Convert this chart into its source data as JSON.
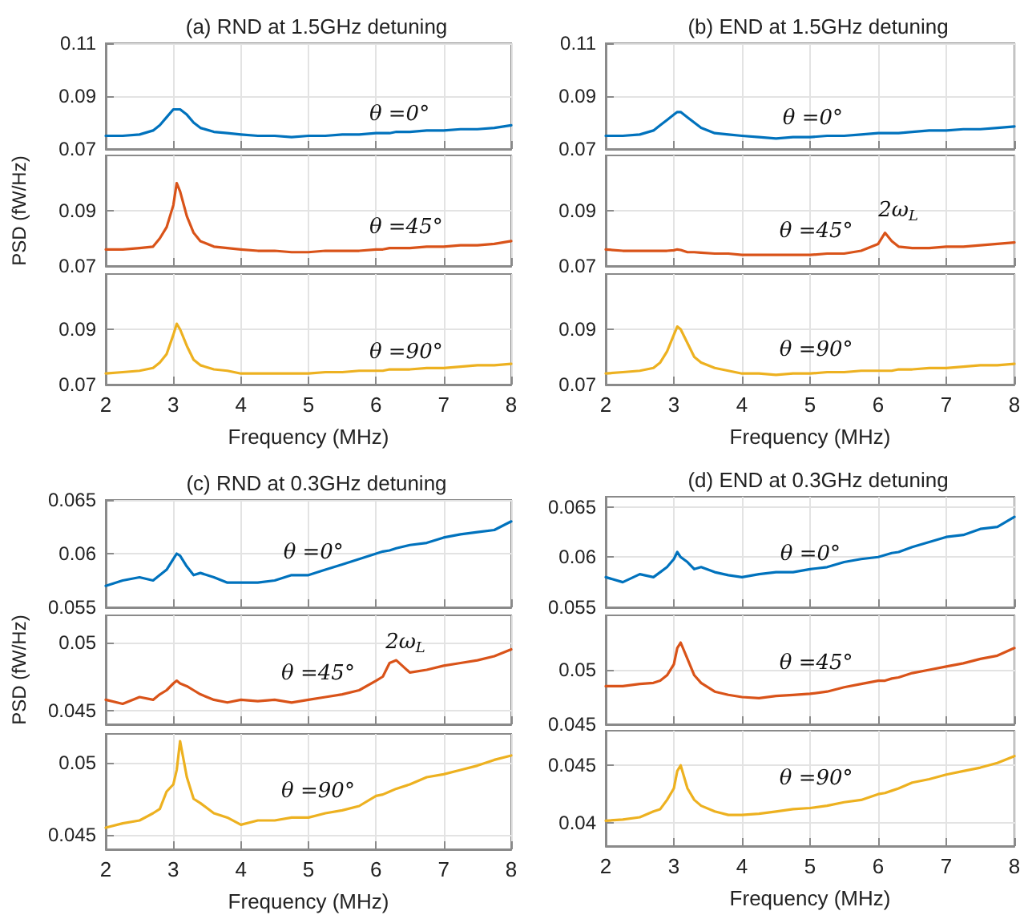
{
  "chart_data": [
    {
      "type": "line",
      "title": "(a) RND at 1.5GHz detuning",
      "x": [
        2,
        2.25,
        2.5,
        2.7,
        2.8,
        2.9,
        3.0,
        3.05,
        3.1,
        3.2,
        3.3,
        3.4,
        3.6,
        3.8,
        4.0,
        4.25,
        4.5,
        4.75,
        5,
        5.25,
        5.5,
        5.75,
        6,
        6.1,
        6.2,
        6.3,
        6.5,
        6.75,
        7,
        7.25,
        7.5,
        7.75,
        8
      ],
      "series": [
        {
          "color": "#0072bd",
          "values": [
            0.075,
            0.075,
            0.0755,
            0.077,
            0.079,
            0.082,
            0.085,
            0.085,
            0.085,
            0.083,
            0.08,
            0.078,
            0.0765,
            0.076,
            0.0755,
            0.075,
            0.075,
            0.0745,
            0.075,
            0.075,
            0.0755,
            0.0755,
            0.076,
            0.076,
            0.076,
            0.0765,
            0.0765,
            0.077,
            0.077,
            0.0775,
            0.0775,
            0.078,
            0.079
          ]
        }
      ],
      "xlim": [
        2,
        8
      ],
      "xticks": [
        2,
        3,
        4,
        5,
        6,
        7,
        8
      ],
      "ylim": [
        0.07,
        0.11
      ],
      "yticks": [
        0.07,
        0.09,
        0.11
      ],
      "grid": true,
      "tick_labels": "y",
      "annotations": [
        "θ =0°"
      ]
    },
    {
      "type": "line",
      "ylabel": "PSD (fW/Hz)",
      "x": [
        2,
        2.25,
        2.5,
        2.7,
        2.8,
        2.9,
        3.0,
        3.05,
        3.1,
        3.2,
        3.3,
        3.4,
        3.6,
        3.8,
        4.0,
        4.25,
        4.5,
        4.75,
        5,
        5.25,
        5.5,
        5.75,
        6,
        6.1,
        6.2,
        6.3,
        6.5,
        6.75,
        7,
        7.25,
        7.5,
        7.75,
        8
      ],
      "series": [
        {
          "color": "#d95319",
          "values": [
            0.076,
            0.076,
            0.0765,
            0.077,
            0.08,
            0.084,
            0.092,
            0.1,
            0.097,
            0.088,
            0.082,
            0.079,
            0.077,
            0.0765,
            0.076,
            0.0755,
            0.0755,
            0.075,
            0.075,
            0.0755,
            0.0755,
            0.0755,
            0.076,
            0.076,
            0.0765,
            0.0765,
            0.0765,
            0.077,
            0.077,
            0.0775,
            0.0775,
            0.078,
            0.079
          ]
        }
      ],
      "xlim": [
        2,
        8
      ],
      "xticks": [
        2,
        3,
        4,
        5,
        6,
        7,
        8
      ],
      "ylim": [
        0.07,
        0.11
      ],
      "yticks": [
        0.07,
        0.09
      ],
      "grid": true,
      "tick_labels": "y",
      "annotations": [
        "θ =45°"
      ]
    },
    {
      "type": "line",
      "xlabel": "Frequency (MHz)",
      "x": [
        2,
        2.25,
        2.5,
        2.7,
        2.8,
        2.9,
        3.0,
        3.05,
        3.1,
        3.2,
        3.3,
        3.4,
        3.6,
        3.8,
        4.0,
        4.25,
        4.5,
        4.75,
        5,
        5.25,
        5.5,
        5.75,
        6,
        6.1,
        6.2,
        6.3,
        6.5,
        6.75,
        7,
        7.25,
        7.5,
        7.75,
        8
      ],
      "series": [
        {
          "color": "#edb120",
          "values": [
            0.074,
            0.0745,
            0.075,
            0.076,
            0.078,
            0.081,
            0.088,
            0.092,
            0.09,
            0.084,
            0.079,
            0.077,
            0.0755,
            0.075,
            0.074,
            0.074,
            0.074,
            0.074,
            0.074,
            0.0745,
            0.0745,
            0.075,
            0.075,
            0.075,
            0.0755,
            0.0755,
            0.0755,
            0.076,
            0.076,
            0.0765,
            0.077,
            0.077,
            0.0775
          ]
        }
      ],
      "xlim": [
        2,
        8
      ],
      "xticks": [
        2,
        3,
        4,
        5,
        6,
        7,
        8
      ],
      "ylim": [
        0.07,
        0.11
      ],
      "yticks": [
        0.07,
        0.09
      ],
      "grid": true,
      "annotations": [
        "θ =90°"
      ]
    },
    {
      "type": "line",
      "title": "(b) END at 1.5GHz detuning",
      "x": [
        2,
        2.25,
        2.5,
        2.7,
        2.8,
        2.9,
        3.0,
        3.05,
        3.1,
        3.2,
        3.3,
        3.4,
        3.6,
        3.8,
        4.0,
        4.25,
        4.5,
        4.75,
        5,
        5.25,
        5.5,
        5.75,
        6,
        6.1,
        6.2,
        6.3,
        6.5,
        6.75,
        7,
        7.25,
        7.5,
        7.75,
        8
      ],
      "series": [
        {
          "color": "#0072bd",
          "values": [
            0.075,
            0.075,
            0.0755,
            0.077,
            0.079,
            0.081,
            0.083,
            0.084,
            0.084,
            0.082,
            0.08,
            0.078,
            0.076,
            0.0755,
            0.075,
            0.0745,
            0.074,
            0.0745,
            0.0745,
            0.075,
            0.075,
            0.0755,
            0.076,
            0.076,
            0.076,
            0.076,
            0.0765,
            0.077,
            0.077,
            0.0775,
            0.0775,
            0.078,
            0.0785
          ]
        }
      ],
      "xlim": [
        2,
        8
      ],
      "xticks": [
        2,
        3,
        4,
        5,
        6,
        7,
        8
      ],
      "ylim": [
        0.07,
        0.11
      ],
      "yticks": [
        0.07,
        0.09,
        0.11
      ],
      "grid": true,
      "tick_labels": "y",
      "annotations": [
        "θ =0°"
      ]
    },
    {
      "type": "line",
      "x": [
        2,
        2.25,
        2.5,
        2.7,
        2.8,
        2.9,
        3.0,
        3.05,
        3.1,
        3.2,
        3.3,
        3.4,
        3.6,
        3.8,
        4.0,
        4.25,
        4.5,
        4.75,
        5,
        5.25,
        5.5,
        5.75,
        6,
        6.1,
        6.2,
        6.3,
        6.5,
        6.75,
        7,
        7.25,
        7.5,
        7.75,
        8
      ],
      "series": [
        {
          "color": "#d95319",
          "values": [
            0.076,
            0.0755,
            0.0755,
            0.0755,
            0.0755,
            0.0755,
            0.0757,
            0.076,
            0.0758,
            0.075,
            0.075,
            0.0748,
            0.0745,
            0.0745,
            0.074,
            0.074,
            0.074,
            0.074,
            0.074,
            0.0745,
            0.0745,
            0.0755,
            0.078,
            0.082,
            0.079,
            0.077,
            0.0765,
            0.0765,
            0.077,
            0.077,
            0.0775,
            0.078,
            0.0785
          ]
        }
      ],
      "xlim": [
        2,
        8
      ],
      "xticks": [
        2,
        3,
        4,
        5,
        6,
        7,
        8
      ],
      "ylim": [
        0.07,
        0.11
      ],
      "yticks": [
        0.07,
        0.09
      ],
      "grid": true,
      "tick_labels": "y",
      "annotations": [
        "θ =45°",
        "2ω$_{L}$"
      ]
    },
    {
      "type": "line",
      "xlabel": "Frequency (MHz)",
      "x": [
        2,
        2.25,
        2.5,
        2.7,
        2.8,
        2.9,
        3.0,
        3.05,
        3.1,
        3.2,
        3.3,
        3.4,
        3.6,
        3.8,
        4.0,
        4.25,
        4.5,
        4.75,
        5,
        5.25,
        5.5,
        5.75,
        6,
        6.1,
        6.2,
        6.3,
        6.5,
        6.75,
        7,
        7.25,
        7.5,
        7.75,
        8
      ],
      "series": [
        {
          "color": "#edb120",
          "values": [
            0.074,
            0.0745,
            0.075,
            0.076,
            0.078,
            0.082,
            0.088,
            0.091,
            0.09,
            0.085,
            0.08,
            0.078,
            0.076,
            0.075,
            0.074,
            0.074,
            0.0735,
            0.074,
            0.074,
            0.0745,
            0.0745,
            0.075,
            0.075,
            0.075,
            0.075,
            0.0755,
            0.0755,
            0.076,
            0.076,
            0.0765,
            0.077,
            0.077,
            0.0775
          ]
        }
      ],
      "xlim": [
        2,
        8
      ],
      "xticks": [
        2,
        3,
        4,
        5,
        6,
        7,
        8
      ],
      "ylim": [
        0.07,
        0.11
      ],
      "yticks": [
        0.07,
        0.09
      ],
      "grid": true,
      "annotations": [
        "θ =90°"
      ]
    },
    {
      "type": "line",
      "title": "(c) RND at 0.3GHz detuning",
      "x": [
        2,
        2.25,
        2.5,
        2.7,
        2.8,
        2.9,
        3.0,
        3.05,
        3.1,
        3.2,
        3.3,
        3.4,
        3.6,
        3.8,
        4.0,
        4.25,
        4.5,
        4.75,
        5,
        5.25,
        5.5,
        5.75,
        6,
        6.1,
        6.2,
        6.3,
        6.5,
        6.75,
        7,
        7.25,
        7.5,
        7.75,
        8
      ],
      "series": [
        {
          "color": "#0072bd",
          "values": [
            0.057,
            0.0575,
            0.0578,
            0.0575,
            0.058,
            0.0585,
            0.0595,
            0.06,
            0.0598,
            0.0588,
            0.058,
            0.0582,
            0.0578,
            0.0573,
            0.0573,
            0.0573,
            0.0575,
            0.058,
            0.058,
            0.0585,
            0.059,
            0.0595,
            0.06,
            0.0602,
            0.0603,
            0.0605,
            0.0608,
            0.061,
            0.0615,
            0.0618,
            0.062,
            0.0622,
            0.063
          ]
        }
      ],
      "xlim": [
        2,
        8
      ],
      "xticks": [
        2,
        3,
        4,
        5,
        6,
        7,
        8
      ],
      "ylim": [
        0.055,
        0.065
      ],
      "yticks": [
        0.055,
        0.06,
        0.065
      ],
      "grid": true,
      "tick_labels": "y",
      "annotations": [
        "θ =0°"
      ]
    },
    {
      "type": "line",
      "ylabel": "PSD (fW/Hz)",
      "x": [
        2,
        2.25,
        2.5,
        2.7,
        2.8,
        2.9,
        3.0,
        3.05,
        3.1,
        3.2,
        3.3,
        3.4,
        3.6,
        3.8,
        4.0,
        4.25,
        4.5,
        4.75,
        5,
        5.25,
        5.5,
        5.75,
        6,
        6.1,
        6.2,
        6.3,
        6.5,
        6.75,
        7,
        7.25,
        7.5,
        7.75,
        8
      ],
      "series": [
        {
          "color": "#d95319",
          "values": [
            0.0458,
            0.0455,
            0.046,
            0.0458,
            0.0462,
            0.0465,
            0.047,
            0.0472,
            0.047,
            0.0468,
            0.0465,
            0.0462,
            0.0458,
            0.0456,
            0.0458,
            0.0457,
            0.0458,
            0.0456,
            0.0458,
            0.046,
            0.0462,
            0.0465,
            0.0472,
            0.0475,
            0.0485,
            0.0487,
            0.0478,
            0.048,
            0.0483,
            0.0485,
            0.0487,
            0.049,
            0.0495
          ]
        }
      ],
      "xlim": [
        2,
        8
      ],
      "xticks": [
        2,
        3,
        4,
        5,
        6,
        7,
        8
      ],
      "ylim": [
        0.044,
        0.052
      ],
      "yticks": [
        0.045,
        0.05
      ],
      "grid": true,
      "tick_labels": "y",
      "annotations": [
        "θ =45°",
        "2ω$_{L}$"
      ]
    },
    {
      "type": "line",
      "xlabel": "Frequency (MHz)",
      "x": [
        2,
        2.25,
        2.5,
        2.7,
        2.8,
        2.9,
        3.0,
        3.05,
        3.1,
        3.2,
        3.3,
        3.4,
        3.6,
        3.8,
        4.0,
        4.25,
        4.5,
        4.75,
        5,
        5.25,
        5.5,
        5.75,
        6,
        6.1,
        6.2,
        6.3,
        6.5,
        6.75,
        7,
        7.25,
        7.5,
        7.75,
        8
      ],
      "series": [
        {
          "color": "#edb120",
          "values": [
            0.0455,
            0.0458,
            0.046,
            0.0465,
            0.0468,
            0.048,
            0.0485,
            0.0495,
            0.0515,
            0.049,
            0.0475,
            0.0472,
            0.0465,
            0.0462,
            0.0457,
            0.046,
            0.046,
            0.0462,
            0.0462,
            0.0465,
            0.0467,
            0.047,
            0.0477,
            0.0478,
            0.048,
            0.0482,
            0.0485,
            0.049,
            0.0492,
            0.0495,
            0.0498,
            0.0502,
            0.0505
          ]
        }
      ],
      "xlim": [
        2,
        8
      ],
      "xticks": [
        2,
        3,
        4,
        5,
        6,
        7,
        8
      ],
      "ylim": [
        0.044,
        0.052
      ],
      "yticks": [
        0.045,
        0.05
      ],
      "grid": true,
      "annotations": [
        "θ =90°"
      ]
    },
    {
      "type": "line",
      "title": "(d) END at 0.3GHz detuning",
      "x": [
        2,
        2.25,
        2.5,
        2.7,
        2.8,
        2.9,
        3.0,
        3.05,
        3.1,
        3.2,
        3.3,
        3.4,
        3.6,
        3.8,
        4.0,
        4.25,
        4.5,
        4.75,
        5,
        5.25,
        5.5,
        5.75,
        6,
        6.1,
        6.2,
        6.3,
        6.5,
        6.75,
        7,
        7.25,
        7.5,
        7.75,
        8
      ],
      "series": [
        {
          "color": "#0072bd",
          "values": [
            0.058,
            0.0575,
            0.0583,
            0.058,
            0.0585,
            0.059,
            0.0598,
            0.0605,
            0.06,
            0.0595,
            0.0588,
            0.059,
            0.0585,
            0.0582,
            0.058,
            0.0583,
            0.0585,
            0.0585,
            0.0588,
            0.059,
            0.0595,
            0.0598,
            0.06,
            0.0602,
            0.0604,
            0.0605,
            0.061,
            0.0615,
            0.062,
            0.0622,
            0.0628,
            0.063,
            0.064
          ]
        }
      ],
      "xlim": [
        2,
        8
      ],
      "xticks": [
        2,
        3,
        4,
        5,
        6,
        7,
        8
      ],
      "ylim": [
        0.055,
        0.066
      ],
      "yticks": [
        0.055,
        0.06,
        0.065
      ],
      "grid": true,
      "tick_labels": "y",
      "annotations": [
        "θ =0°"
      ]
    },
    {
      "type": "line",
      "x": [
        2,
        2.25,
        2.5,
        2.7,
        2.8,
        2.9,
        3.0,
        3.05,
        3.1,
        3.2,
        3.3,
        3.4,
        3.6,
        3.8,
        4.0,
        4.25,
        4.5,
        4.75,
        5,
        5.25,
        5.5,
        5.75,
        6,
        6.1,
        6.2,
        6.3,
        6.5,
        6.75,
        7,
        7.25,
        7.5,
        7.75,
        8
      ],
      "series": [
        {
          "color": "#d95319",
          "values": [
            0.0485,
            0.0485,
            0.0487,
            0.0488,
            0.049,
            0.0495,
            0.0505,
            0.052,
            0.0525,
            0.051,
            0.0495,
            0.0488,
            0.048,
            0.0477,
            0.0475,
            0.0474,
            0.0476,
            0.0477,
            0.0478,
            0.048,
            0.0484,
            0.0487,
            0.049,
            0.049,
            0.0492,
            0.0493,
            0.0497,
            0.05,
            0.0503,
            0.0506,
            0.051,
            0.0513,
            0.052
          ]
        }
      ],
      "xlim": [
        2,
        8
      ],
      "xticks": [
        2,
        3,
        4,
        5,
        6,
        7,
        8
      ],
      "ylim": [
        0.045,
        0.055
      ],
      "yticks": [
        0.045,
        0.05
      ],
      "grid": true,
      "tick_labels": "y",
      "annotations": [
        "θ =45°"
      ]
    },
    {
      "type": "line",
      "xlabel": "Frequency (MHz)",
      "x": [
        2,
        2.25,
        2.5,
        2.7,
        2.8,
        2.9,
        3.0,
        3.05,
        3.1,
        3.2,
        3.3,
        3.4,
        3.6,
        3.8,
        4.0,
        4.25,
        4.5,
        4.75,
        5,
        5.25,
        5.5,
        5.75,
        6,
        6.1,
        6.2,
        6.3,
        6.5,
        6.75,
        7,
        7.25,
        7.5,
        7.75,
        8
      ],
      "series": [
        {
          "color": "#edb120",
          "values": [
            0.0402,
            0.0403,
            0.0405,
            0.041,
            0.0412,
            0.042,
            0.043,
            0.0445,
            0.045,
            0.043,
            0.042,
            0.0415,
            0.041,
            0.0407,
            0.0407,
            0.0408,
            0.041,
            0.0412,
            0.0413,
            0.0415,
            0.0418,
            0.042,
            0.0425,
            0.0426,
            0.0428,
            0.043,
            0.0435,
            0.0438,
            0.0442,
            0.0445,
            0.0448,
            0.0452,
            0.0458
          ]
        }
      ],
      "xlim": [
        2,
        8
      ],
      "xticks": [
        2,
        3,
        4,
        5,
        6,
        7,
        8
      ],
      "ylim": [
        0.038,
        0.048
      ],
      "yticks": [
        0.04,
        0.045
      ],
      "grid": true,
      "annotations": [
        "θ =90°"
      ]
    }
  ]
}
